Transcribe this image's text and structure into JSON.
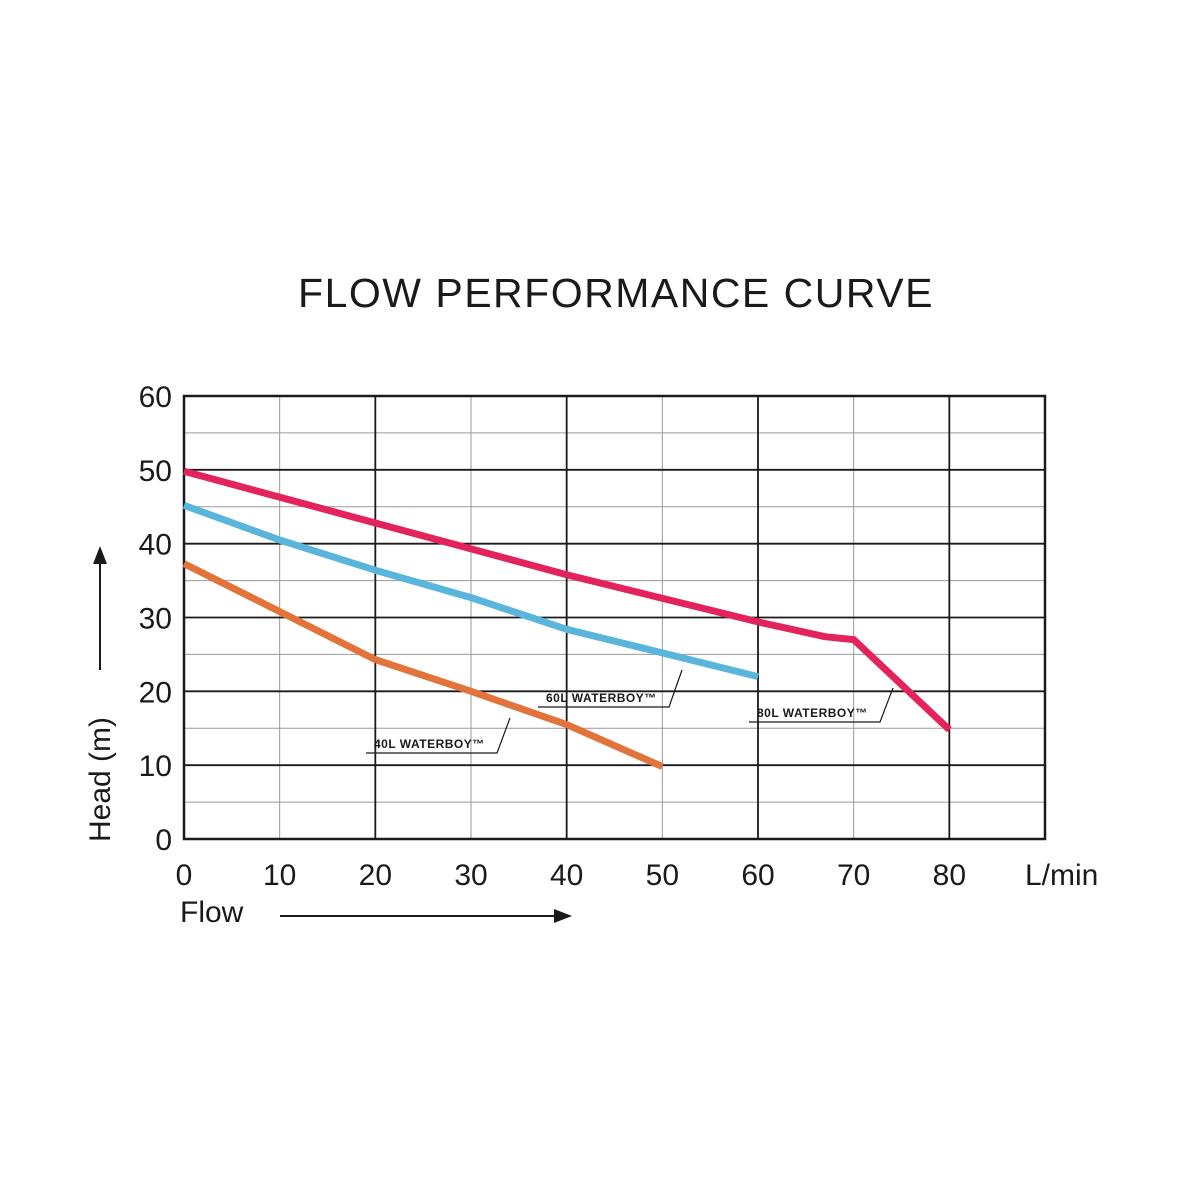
{
  "chart_data": {
    "type": "line",
    "title": "FLOW PERFORMANCE CURVE",
    "xlabel": "Flow",
    "ylabel": "Head (m)",
    "x_unit": "L/min",
    "xlim": [
      0,
      90
    ],
    "ylim": [
      0,
      60
    ],
    "x_ticks": [
      0,
      10,
      20,
      30,
      40,
      50,
      60,
      70,
      80
    ],
    "y_ticks": [
      0,
      10,
      20,
      30,
      40,
      50,
      60
    ],
    "grid": true,
    "legend": "inline labels",
    "series": [
      {
        "name": "80L WATERBOY™",
        "color": "#e3245c",
        "points": [
          [
            0,
            49.8
          ],
          [
            20,
            42.8
          ],
          [
            40,
            35.8
          ],
          [
            60,
            29.4
          ],
          [
            67,
            27.4
          ],
          [
            70,
            27.0
          ],
          [
            80,
            14.8
          ]
        ]
      },
      {
        "name": "60L WATERBOY™",
        "color": "#59b5dc",
        "points": [
          [
            0,
            45.2
          ],
          [
            10,
            40.5
          ],
          [
            20,
            36.4
          ],
          [
            30,
            32.7
          ],
          [
            40,
            28.4
          ],
          [
            50,
            25.2
          ],
          [
            60,
            22.0
          ]
        ]
      },
      {
        "name": "40L WATERBOY™",
        "color": "#e2733a",
        "points": [
          [
            0,
            37.3
          ],
          [
            10,
            30.8
          ],
          [
            20,
            24.3
          ],
          [
            30,
            20.0
          ],
          [
            40,
            15.5
          ],
          [
            50,
            9.8
          ]
        ]
      }
    ]
  }
}
